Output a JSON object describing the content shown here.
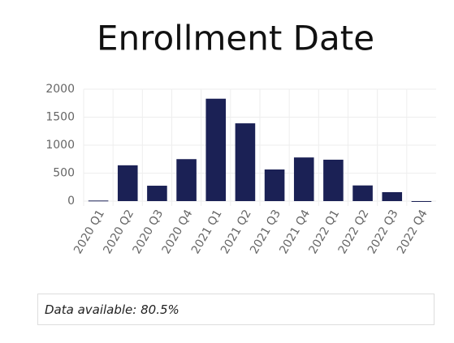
{
  "chart_data": {
    "type": "bar",
    "title": "Enrollment Date",
    "categories": [
      "2020 Q1",
      "2020 Q2",
      "2020 Q3",
      "2020 Q4",
      "2021 Q1",
      "2021 Q2",
      "2021 Q3",
      "2021 Q4",
      "2022 Q1",
      "2022 Q2",
      "2022 Q3",
      "2022 Q4"
    ],
    "values": [
      10,
      640,
      275,
      750,
      1830,
      1390,
      565,
      780,
      740,
      280,
      160,
      0
    ],
    "color": "#1b2155",
    "ylim": [
      0,
      2000
    ],
    "yticks": [
      0,
      500,
      1000,
      1500,
      2000
    ],
    "grid": true,
    "note": "Data available: 80.5%"
  }
}
